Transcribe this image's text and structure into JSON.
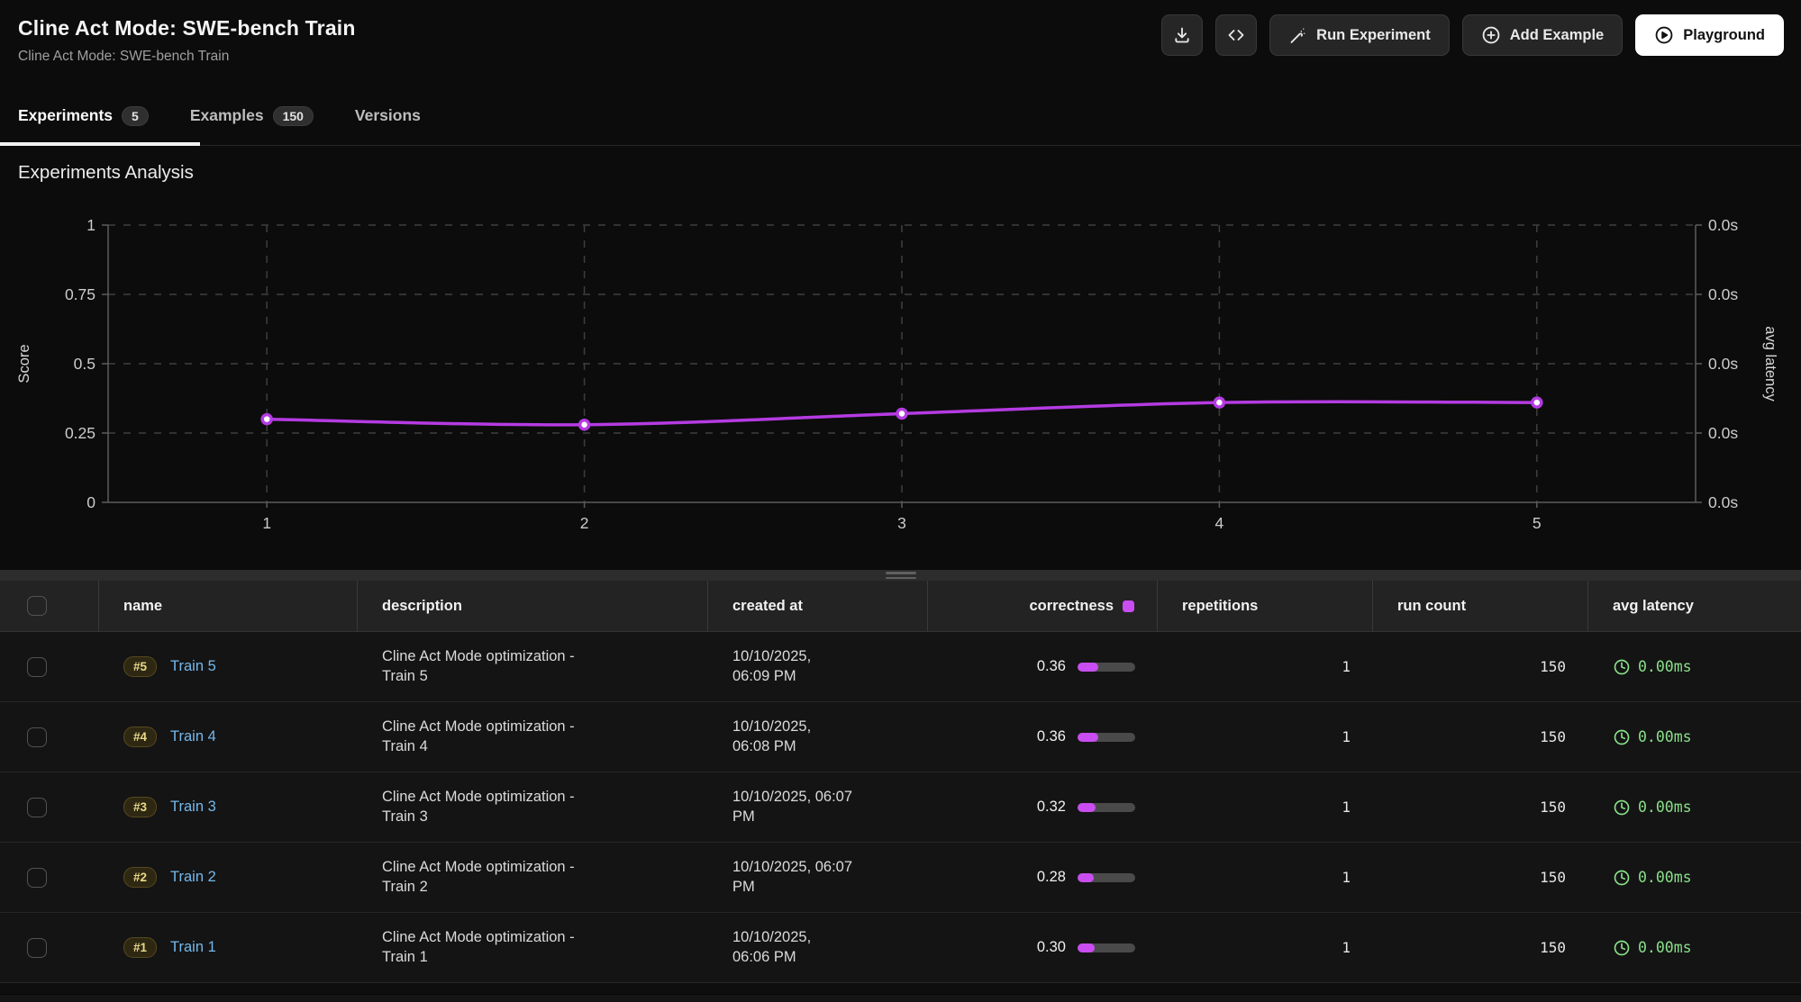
{
  "header": {
    "title": "Cline Act Mode: SWE-bench Train",
    "subtitle": "Cline Act Mode: SWE-bench Train",
    "actions": {
      "download_icon": "download-icon",
      "code_icon": "code-icon",
      "run_experiment_label": "Run Experiment",
      "add_example_label": "Add Example",
      "playground_label": "Playground"
    }
  },
  "tabs": [
    {
      "label": "Experiments",
      "count": "5",
      "active": true
    },
    {
      "label": "Examples",
      "count": "150",
      "active": false
    },
    {
      "label": "Versions",
      "count": null,
      "active": false
    }
  ],
  "analysis": {
    "title": "Experiments Analysis"
  },
  "chart_data": {
    "type": "line",
    "title": "Experiments Analysis",
    "x": [
      1,
      2,
      3,
      4,
      5
    ],
    "series": [
      {
        "name": "correctness",
        "values": [
          0.3,
          0.28,
          0.32,
          0.36,
          0.36
        ]
      }
    ],
    "ylabel_left": "Score",
    "ylabel_right": "avg latency",
    "ylim": [
      0,
      1
    ],
    "yticks_left": [
      "0",
      "0.25",
      "0.5",
      "0.75",
      "1"
    ],
    "ytick_values": [
      0,
      0.25,
      0.5,
      0.75,
      1
    ],
    "yticks_right": [
      "0.0s",
      "0.0s",
      "0.0s",
      "0.0s",
      "0.0s"
    ],
    "grid": true,
    "legend": "none",
    "line_color": "#b53be2",
    "dot_fill": "#ffffff"
  },
  "colors": {
    "accent_magenta": "#c94df0",
    "latency_green": "#8ae08a",
    "link_blue": "#75b8eb",
    "badge_yellow": "#e9d989"
  },
  "table": {
    "columns": [
      {
        "label": "name"
      },
      {
        "label": "description"
      },
      {
        "label": "created at"
      },
      {
        "label": "correctness"
      },
      {
        "label": "repetitions"
      },
      {
        "label": "run count"
      },
      {
        "label": "avg latency"
      }
    ],
    "rows": [
      {
        "badge": "#5",
        "name": "Train 5",
        "description": "Cline Act Mode optimization -\nTrain 5",
        "created_at": "10/10/2025,\n06:09 PM",
        "correctness": "0.36",
        "correctness_pct": 36,
        "repetitions": "1",
        "run_count": "150",
        "avg_latency": "0.00ms"
      },
      {
        "badge": "#4",
        "name": "Train 4",
        "description": "Cline Act Mode optimization -\nTrain 4",
        "created_at": "10/10/2025,\n06:08 PM",
        "correctness": "0.36",
        "correctness_pct": 36,
        "repetitions": "1",
        "run_count": "150",
        "avg_latency": "0.00ms"
      },
      {
        "badge": "#3",
        "name": "Train 3",
        "description": "Cline Act Mode optimization -\nTrain 3",
        "created_at": "10/10/2025, 06:07\nPM",
        "correctness": "0.32",
        "correctness_pct": 32,
        "repetitions": "1",
        "run_count": "150",
        "avg_latency": "0.00ms"
      },
      {
        "badge": "#2",
        "name": "Train 2",
        "description": "Cline Act Mode optimization -\nTrain 2",
        "created_at": "10/10/2025, 06:07\nPM",
        "correctness": "0.28",
        "correctness_pct": 28,
        "repetitions": "1",
        "run_count": "150",
        "avg_latency": "0.00ms"
      },
      {
        "badge": "#1",
        "name": "Train 1",
        "description": "Cline Act Mode optimization -\nTrain 1",
        "created_at": "10/10/2025,\n06:06 PM",
        "correctness": "0.30",
        "correctness_pct": 30,
        "repetitions": "1",
        "run_count": "150",
        "avg_latency": "0.00ms"
      }
    ]
  }
}
